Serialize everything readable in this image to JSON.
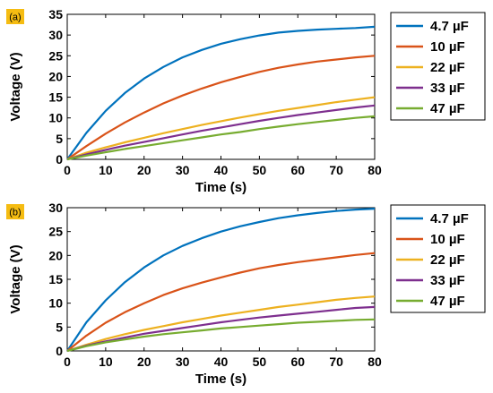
{
  "chart_data": [
    {
      "type": "line",
      "panel_label": "(a)",
      "xlabel": "Time (s)",
      "ylabel": "Voltage (V)",
      "xlim": [
        0,
        80
      ],
      "ylim": [
        0,
        35
      ],
      "xticks": [
        0,
        10,
        20,
        30,
        40,
        50,
        60,
        70,
        80
      ],
      "yticks": [
        0,
        5,
        10,
        15,
        20,
        25,
        30,
        35
      ],
      "legend_position": "outside-right",
      "grid": false,
      "x": [
        0,
        5,
        10,
        15,
        20,
        25,
        30,
        35,
        40,
        45,
        50,
        55,
        60,
        65,
        70,
        75,
        80
      ],
      "series": [
        {
          "name": "4.7 µF",
          "color": "#0072BD",
          "values": [
            0,
            6.4,
            11.7,
            16.0,
            19.5,
            22.3,
            24.6,
            26.4,
            27.9,
            29.0,
            29.9,
            30.6,
            31.0,
            31.3,
            31.5,
            31.7,
            32.0
          ]
        },
        {
          "name": "10 µF",
          "color": "#D95319",
          "values": [
            0,
            3.2,
            6.2,
            8.9,
            11.3,
            13.5,
            15.4,
            17.1,
            18.6,
            19.9,
            21.1,
            22.1,
            22.9,
            23.6,
            24.1,
            24.6,
            25.0
          ]
        },
        {
          "name": "22 µF",
          "color": "#EDB120",
          "values": [
            0,
            1.6,
            2.9,
            4.1,
            5.2,
            6.3,
            7.3,
            8.3,
            9.2,
            10.1,
            10.9,
            11.7,
            12.4,
            13.1,
            13.8,
            14.4,
            15.0
          ]
        },
        {
          "name": "33 µF",
          "color": "#7E2F8E",
          "values": [
            0,
            1.2,
            2.3,
            3.3,
            4.2,
            5.1,
            6.0,
            6.9,
            7.7,
            8.5,
            9.3,
            10.0,
            10.7,
            11.3,
            11.9,
            12.5,
            13.0
          ]
        },
        {
          "name": "47 µF",
          "color": "#77AC30",
          "values": [
            0,
            0.9,
            1.7,
            2.5,
            3.2,
            3.9,
            4.6,
            5.3,
            6.0,
            6.6,
            7.3,
            7.9,
            8.5,
            9.0,
            9.5,
            10.0,
            10.4
          ]
        }
      ]
    },
    {
      "type": "line",
      "panel_label": "(b)",
      "xlabel": "Time (s)",
      "ylabel": "Voltage (V)",
      "xlim": [
        0,
        80
      ],
      "ylim": [
        0,
        30
      ],
      "xticks": [
        0,
        10,
        20,
        30,
        40,
        50,
        60,
        70,
        80
      ],
      "yticks": [
        0,
        5,
        10,
        15,
        20,
        25,
        30
      ],
      "legend_position": "outside-right",
      "grid": false,
      "x": [
        0,
        5,
        10,
        15,
        20,
        25,
        30,
        35,
        40,
        45,
        50,
        55,
        60,
        65,
        70,
        75,
        80
      ],
      "series": [
        {
          "name": "4.7 µF",
          "color": "#0072BD",
          "values": [
            0,
            6.0,
            10.6,
            14.4,
            17.5,
            20.0,
            22.0,
            23.6,
            25.0,
            26.1,
            27.0,
            27.8,
            28.4,
            28.9,
            29.3,
            29.6,
            29.8
          ]
        },
        {
          "name": "10 µF",
          "color": "#D95319",
          "values": [
            0,
            3.2,
            5.9,
            8.1,
            10.0,
            11.7,
            13.1,
            14.3,
            15.4,
            16.4,
            17.3,
            18.0,
            18.6,
            19.1,
            19.6,
            20.1,
            20.5
          ]
        },
        {
          "name": "22 µF",
          "color": "#EDB120",
          "values": [
            0,
            1.3,
            2.5,
            3.5,
            4.4,
            5.2,
            6.0,
            6.7,
            7.4,
            8.0,
            8.6,
            9.2,
            9.7,
            10.2,
            10.7,
            11.1,
            11.4
          ]
        },
        {
          "name": "33 µF",
          "color": "#7E2F8E",
          "values": [
            0,
            1.1,
            2.0,
            2.8,
            3.6,
            4.2,
            4.8,
            5.4,
            6.0,
            6.5,
            7.0,
            7.4,
            7.8,
            8.2,
            8.6,
            9.0,
            9.2
          ]
        },
        {
          "name": "47 µF",
          "color": "#77AC30",
          "values": [
            0,
            1.0,
            1.8,
            2.4,
            3.0,
            3.5,
            3.9,
            4.3,
            4.7,
            5.0,
            5.3,
            5.6,
            5.9,
            6.1,
            6.3,
            6.5,
            6.6
          ]
        }
      ]
    }
  ]
}
